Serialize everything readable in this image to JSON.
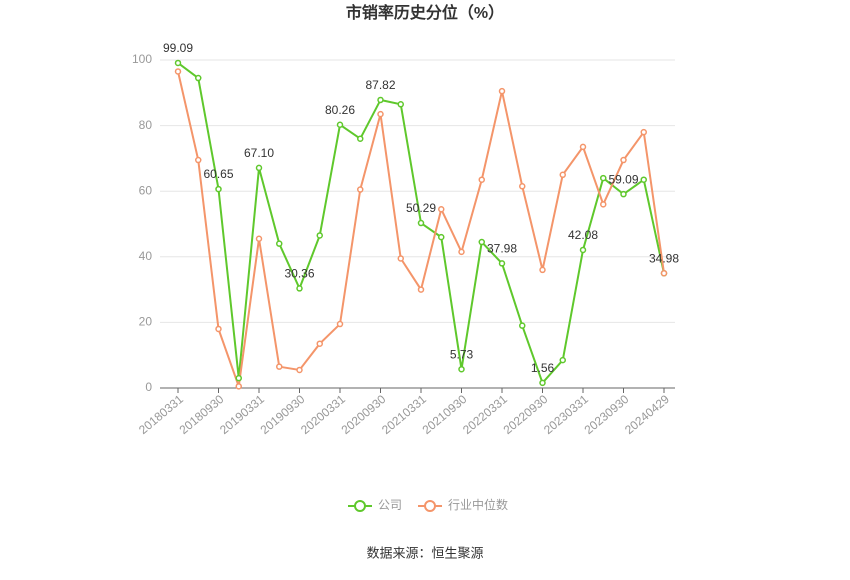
{
  "chart_data": {
    "type": "line",
    "title": "市销率历史分位（%）",
    "categories": [
      "20180331",
      null,
      "20180930",
      null,
      "20190331",
      null,
      "20190930",
      null,
      "20200331",
      null,
      "20200930",
      null,
      "20210331",
      null,
      "20210930",
      null,
      "20220331",
      null,
      "20220930",
      null,
      "20230331",
      null,
      "20230930",
      null,
      "20240429"
    ],
    "series": [
      {
        "name": "公司",
        "color": "#5fc82c",
        "values": [
          99.09,
          94.5,
          60.65,
          3,
          67.1,
          44,
          30.36,
          46.5,
          80.26,
          76,
          87.82,
          86.5,
          50.29,
          46,
          5.73,
          44.5,
          37.98,
          19,
          1.56,
          8.5,
          42.08,
          64,
          59.09,
          63.5,
          34.98
        ],
        "value_labels": [
          "99.09",
          null,
          "60.65",
          null,
          "67.10",
          null,
          "30.36",
          null,
          "80.26",
          null,
          "87.82",
          null,
          "50.29",
          null,
          "5.73",
          null,
          "37.98",
          null,
          "1.56",
          null,
          "42.08",
          null,
          "59.09",
          null,
          "34.98"
        ]
      },
      {
        "name": "行业中位数",
        "color": "#f4956a",
        "values": [
          96.5,
          69.5,
          18,
          0.5,
          45.5,
          6.5,
          5.5,
          13.5,
          19.5,
          60.5,
          83.5,
          39.5,
          30,
          54.5,
          41.5,
          63.5,
          90.5,
          61.5,
          36,
          65,
          73.5,
          56,
          69.5,
          78,
          35
        ]
      }
    ],
    "ylim": [
      0,
      100
    ],
    "yticks": [
      0,
      20,
      40,
      60,
      80,
      100
    ],
    "grid": true,
    "source": "数据来源：恒生聚源"
  }
}
